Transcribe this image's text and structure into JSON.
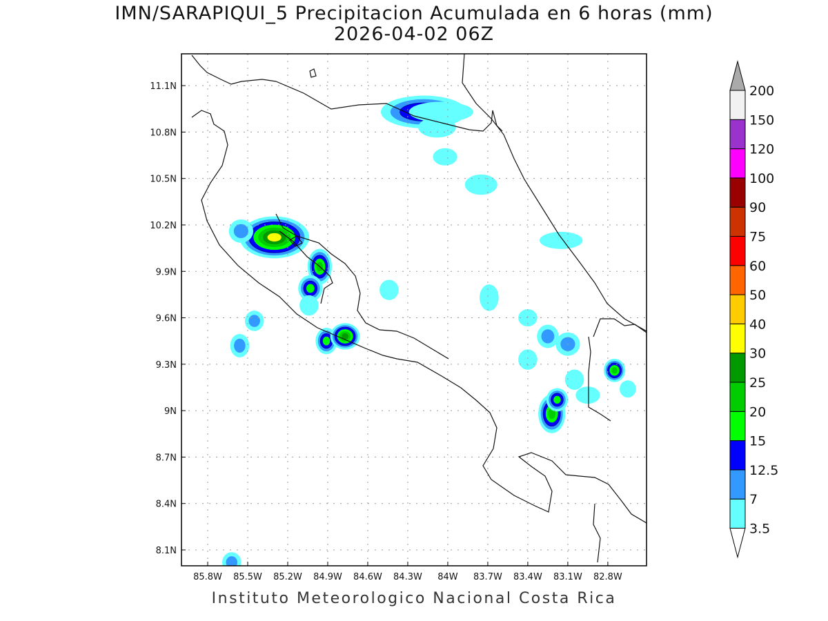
{
  "title": {
    "line1": "IMN/SARAPIQUI_5 Precipitacion Acumulada en 6 horas (mm)",
    "line2": "2026-04-02 06Z"
  },
  "footer": "Instituto Meteorologico Nacional Costa Rica",
  "chart_data": {
    "type": "heatmap",
    "variable": "Precipitacion Acumulada en 6 horas (mm)",
    "lon_range": [
      -86.0,
      -82.5
    ],
    "lat_range": [
      8.0,
      11.3
    ],
    "lon_ticks": [
      "85.8W",
      "85.5W",
      "85.2W",
      "84.9W",
      "84.6W",
      "84.3W",
      "84W",
      "83.7W",
      "83.4W",
      "83.1W",
      "82.8W"
    ],
    "lon_values": [
      85.8,
      85.5,
      85.2,
      84.9,
      84.6,
      84.3,
      84.0,
      83.7,
      83.4,
      83.1,
      82.8
    ],
    "lat_ticks": [
      "11.1N",
      "10.8N",
      "10.5N",
      "10.2N",
      "9.9N",
      "9.6N",
      "9.3N",
      "9N",
      "8.7N",
      "8.4N",
      "8.1N"
    ],
    "lat_values": [
      11.1,
      10.8,
      10.5,
      10.2,
      9.9,
      9.6,
      9.3,
      9.0,
      8.7,
      8.4,
      8.1
    ],
    "grid": true,
    "colorbar": {
      "labels": [
        "3.5",
        "7",
        "12.5",
        "15",
        "20",
        "25",
        "30",
        "40",
        "50",
        "60",
        "75",
        "90",
        "100",
        "120",
        "150",
        "200"
      ],
      "colors": [
        "#66ffff",
        "#3399ff",
        "#0000ff",
        "#00ff00",
        "#00cc00",
        "#009900",
        "#ffff00",
        "#ffcc00",
        "#ff6600",
        "#ff0000",
        "#cc3300",
        "#990000",
        "#ff00ff",
        "#9933cc",
        "#f2f2f2"
      ],
      "over_color": "#aaaaaa",
      "under_color": "#ffffff"
    },
    "precip_cells": [
      {
        "lon": 84.18,
        "lat": 10.93,
        "dlon": 0.28,
        "dlat": 0.07,
        "level": 4
      },
      {
        "lon": 84.05,
        "lat": 10.93,
        "dlon": 0.2,
        "dlat": 0.03,
        "level": 1
      },
      {
        "lon": 84.08,
        "lat": 10.83,
        "dlon": 0.1,
        "dlat": 0.03,
        "level": 1
      },
      {
        "lon": 84.02,
        "lat": 10.64,
        "dlon": 0.05,
        "dlat": 0.02,
        "level": 1
      },
      {
        "lon": 83.75,
        "lat": 10.46,
        "dlon": 0.08,
        "dlat": 0.03,
        "level": 1
      },
      {
        "lon": 83.15,
        "lat": 10.1,
        "dlon": 0.12,
        "dlat": 0.02,
        "level": 1
      },
      {
        "lon": 85.3,
        "lat": 10.12,
        "dlon": 0.22,
        "dlat": 0.1,
        "level": 7
      },
      {
        "lon": 85.55,
        "lat": 10.16,
        "dlon": 0.05,
        "dlat": 0.04,
        "level": 2
      },
      {
        "lon": 84.96,
        "lat": 9.93,
        "dlon": 0.05,
        "dlat": 0.08,
        "level": 5
      },
      {
        "lon": 85.03,
        "lat": 9.79,
        "dlon": 0.05,
        "dlat": 0.05,
        "level": 4
      },
      {
        "lon": 84.91,
        "lat": 9.45,
        "dlon": 0.04,
        "dlat": 0.05,
        "level": 4
      },
      {
        "lon": 84.77,
        "lat": 9.48,
        "dlon": 0.07,
        "dlat": 0.05,
        "level": 6
      },
      {
        "lon": 85.56,
        "lat": 9.42,
        "dlon": 0.03,
        "dlat": 0.04,
        "level": 2
      },
      {
        "lon": 85.45,
        "lat": 9.58,
        "dlon": 0.03,
        "dlat": 0.03,
        "level": 2
      },
      {
        "lon": 85.04,
        "lat": 9.68,
        "dlon": 0.03,
        "dlat": 0.03,
        "level": 1
      },
      {
        "lon": 84.44,
        "lat": 9.78,
        "dlon": 0.03,
        "dlat": 0.03,
        "level": 1
      },
      {
        "lon": 83.69,
        "lat": 9.73,
        "dlon": 0.03,
        "dlat": 0.05,
        "level": 1
      },
      {
        "lon": 83.22,
        "lat": 8.98,
        "dlon": 0.06,
        "dlat": 0.09,
        "level": 5
      },
      {
        "lon": 83.18,
        "lat": 9.07,
        "dlon": 0.04,
        "dlat": 0.04,
        "level": 4
      },
      {
        "lon": 82.75,
        "lat": 9.26,
        "dlon": 0.04,
        "dlat": 0.04,
        "level": 5
      },
      {
        "lon": 83.25,
        "lat": 9.48,
        "dlon": 0.04,
        "dlat": 0.04,
        "level": 2
      },
      {
        "lon": 83.1,
        "lat": 9.43,
        "dlon": 0.05,
        "dlat": 0.04,
        "level": 2
      },
      {
        "lon": 83.4,
        "lat": 9.33,
        "dlon": 0.03,
        "dlat": 0.03,
        "level": 1
      },
      {
        "lon": 83.05,
        "lat": 9.2,
        "dlon": 0.03,
        "dlat": 0.03,
        "level": 1
      },
      {
        "lon": 82.95,
        "lat": 9.1,
        "dlon": 0.05,
        "dlat": 0.02,
        "level": 1
      },
      {
        "lon": 82.65,
        "lat": 9.14,
        "dlon": 0.02,
        "dlat": 0.02,
        "level": 1
      },
      {
        "lon": 83.4,
        "lat": 9.6,
        "dlon": 0.03,
        "dlat": 0.02,
        "level": 1
      },
      {
        "lon": 85.62,
        "lat": 8.02,
        "dlon": 0.03,
        "dlat": 0.03,
        "level": 2
      }
    ]
  }
}
